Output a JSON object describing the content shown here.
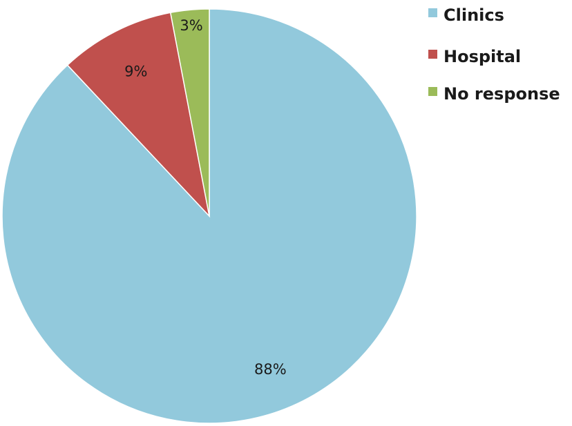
{
  "chart_data": {
    "type": "pie",
    "categories": [
      "Clinics",
      "Hospital",
      "No response"
    ],
    "values": [
      88,
      9,
      3
    ],
    "data_labels": [
      "88%",
      "9%",
      "3%"
    ],
    "colors": [
      "#92C9DC",
      "#C0504D",
      "#9BBB59"
    ],
    "start": "12 o'clock",
    "direction": "clockwise",
    "legend_position": "top-right",
    "title": ""
  }
}
